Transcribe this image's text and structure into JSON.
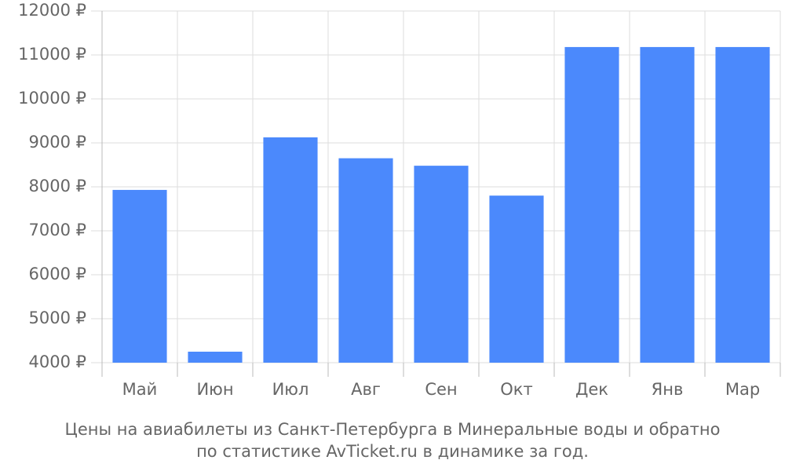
{
  "chart_data": {
    "type": "bar",
    "title": [
      "Цены на авиабилеты из Санкт-Петербурга в Минеральные воды и обратно",
      "по статистике AvTicket.ru в динамике за год."
    ],
    "categories": [
      "Май",
      "Июн",
      "Июл",
      "Авг",
      "Сен",
      "Окт",
      "Дек",
      "Янв",
      "Мар"
    ],
    "values": [
      7930,
      4250,
      9125,
      8650,
      8480,
      7800,
      11180,
      11180,
      11180
    ],
    "color": "#4b89fc",
    "ylim": [
      4000,
      12000
    ],
    "yticks": [
      {
        "value": 4000,
        "label": "4000 ₽"
      },
      {
        "value": 5000,
        "label": "5000 ₽"
      },
      {
        "value": 6000,
        "label": "6000 ₽"
      },
      {
        "value": 7000,
        "label": "7000 ₽"
      },
      {
        "value": 8000,
        "label": "8000 ₽"
      },
      {
        "value": 9000,
        "label": "9000 ₽"
      },
      {
        "value": 10000,
        "label": "10000 ₽"
      },
      {
        "value": 11000,
        "label": "11000 ₽"
      },
      {
        "value": 12000,
        "label": "12000 ₽"
      }
    ],
    "grid": true
  }
}
